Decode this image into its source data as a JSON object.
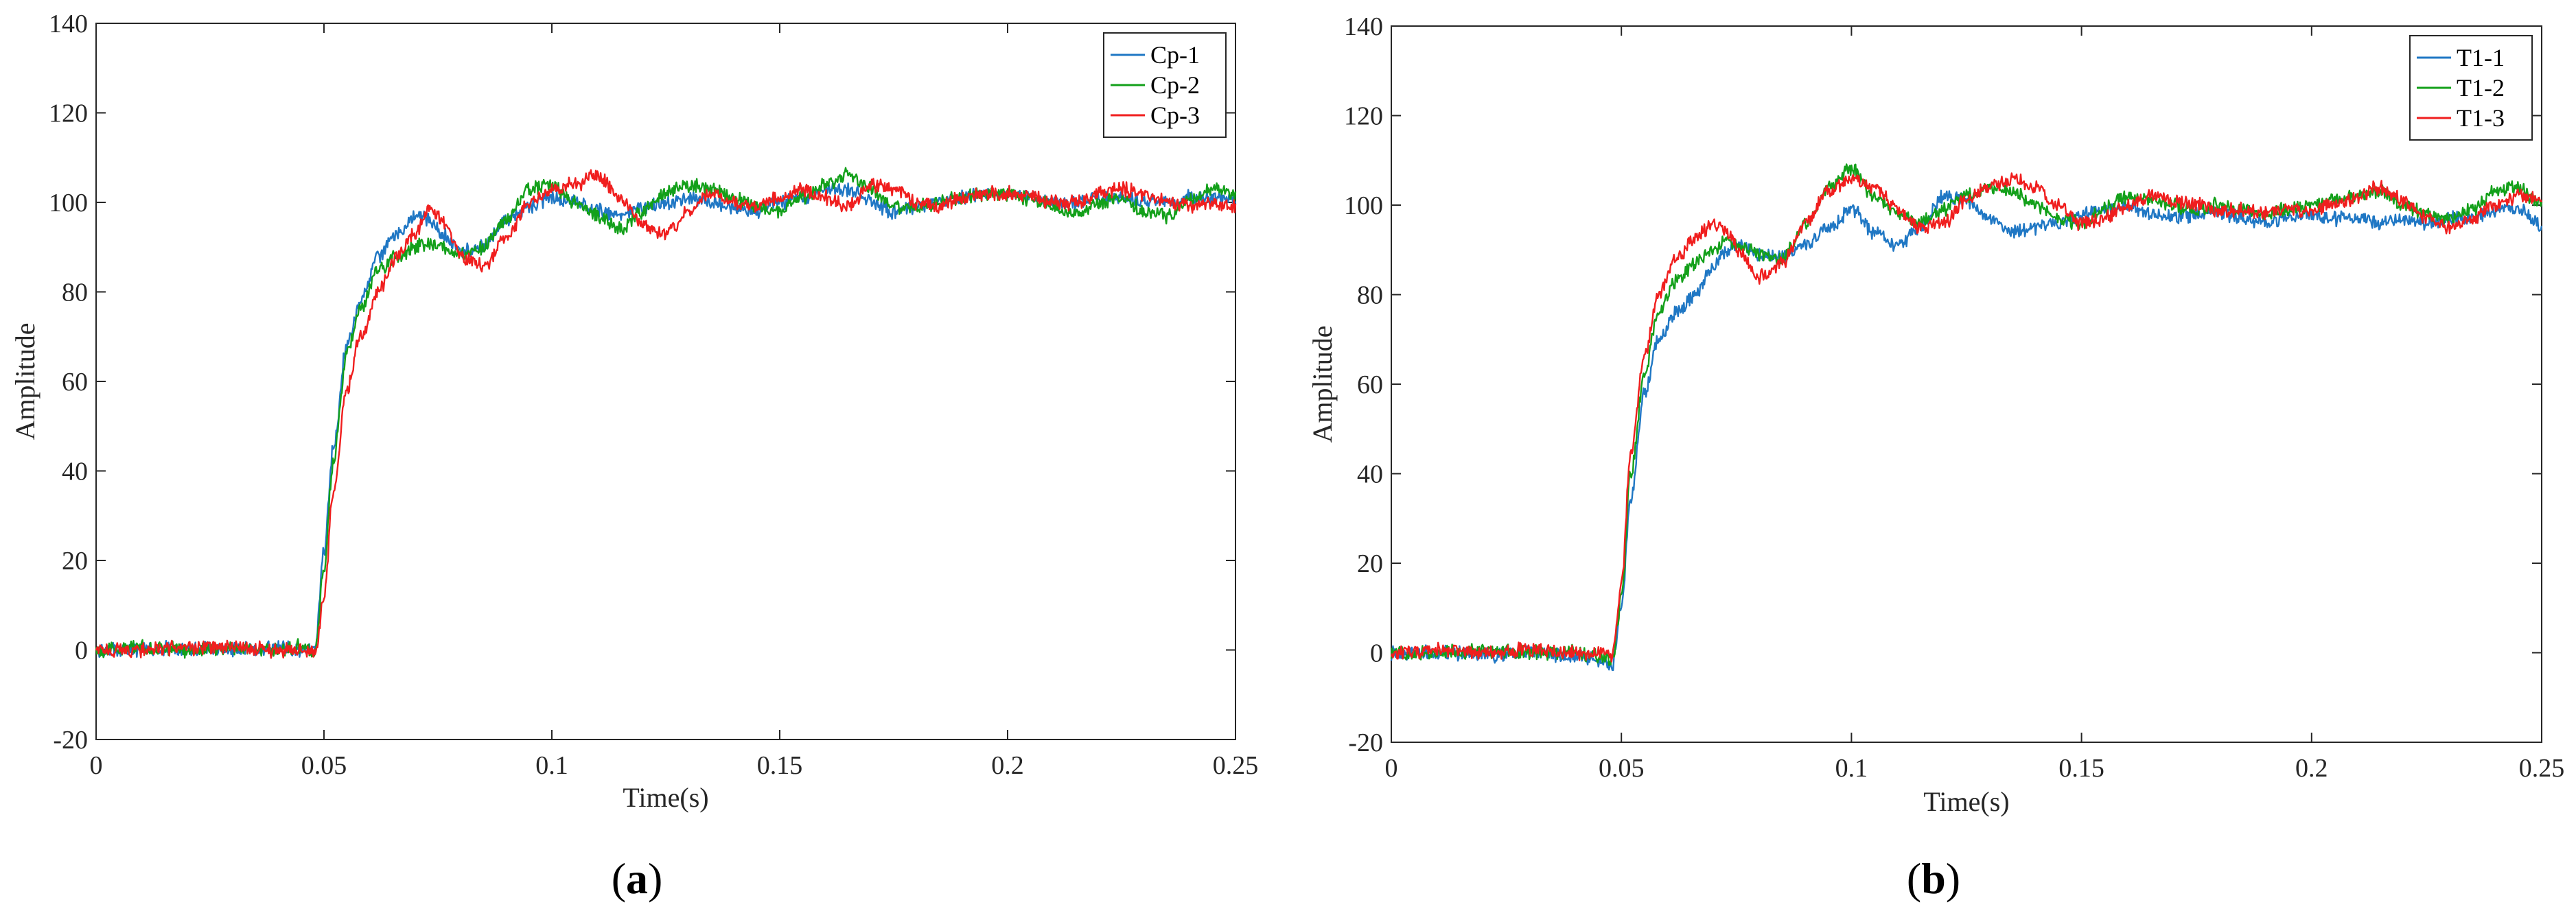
{
  "chart_data": [
    {
      "type": "line",
      "panel_label": "(a)",
      "panel_letter": "a",
      "xlabel": "Time(s)",
      "ylabel": "Amplitude",
      "xlim": [
        0,
        0.25
      ],
      "ylim": [
        -20,
        140
      ],
      "xticks": [
        0,
        0.05,
        0.1,
        0.15,
        0.2,
        0.25
      ],
      "xtick_labels": [
        "0",
        "0.05",
        "0.1",
        "0.15",
        "0.2",
        "0.25"
      ],
      "yticks": [
        -20,
        0,
        20,
        40,
        60,
        80,
        100,
        120,
        140
      ],
      "ytick_labels": [
        "-20",
        "0",
        "20",
        "40",
        "60",
        "80",
        "100",
        "120",
        "140"
      ],
      "legend_position": "top-right",
      "series": [
        {
          "name": "Cp-1",
          "color": "#1f77c4",
          "x": [
            0,
            0.01,
            0.02,
            0.03,
            0.04,
            0.046,
            0.048,
            0.05,
            0.052,
            0.055,
            0.058,
            0.062,
            0.066,
            0.07,
            0.073,
            0.076,
            0.08,
            0.085,
            0.09,
            0.095,
            0.1,
            0.105,
            0.11,
            0.115,
            0.12,
            0.125,
            0.13,
            0.135,
            0.14,
            0.145,
            0.15,
            0.155,
            0.16,
            0.165,
            0.17,
            0.175,
            0.18,
            0.185,
            0.19,
            0.195,
            0.2,
            0.205,
            0.21,
            0.215,
            0.22,
            0.225,
            0.23,
            0.235,
            0.24,
            0.245,
            0.25
          ],
          "y": [
            0,
            0,
            0.5,
            0,
            0.5,
            0,
            0,
            22,
            45,
            68,
            78,
            88,
            93,
            97,
            96,
            93,
            89,
            90,
            96,
            99,
            101,
            100,
            98,
            97,
            99,
            100,
            101,
            100,
            99,
            98,
            100,
            101,
            103,
            103,
            100,
            98,
            99,
            100,
            101,
            102,
            102,
            101,
            100,
            100,
            101,
            101,
            100,
            100,
            101,
            101,
            101
          ]
        },
        {
          "name": "Cp-2",
          "color": "#13a01a",
          "x": [
            0,
            0.01,
            0.02,
            0.03,
            0.04,
            0.046,
            0.048,
            0.05,
            0.052,
            0.055,
            0.058,
            0.062,
            0.066,
            0.07,
            0.073,
            0.076,
            0.08,
            0.085,
            0.09,
            0.095,
            0.1,
            0.105,
            0.11,
            0.115,
            0.12,
            0.125,
            0.13,
            0.135,
            0.14,
            0.145,
            0.15,
            0.155,
            0.16,
            0.165,
            0.17,
            0.175,
            0.18,
            0.185,
            0.19,
            0.195,
            0.2,
            0.205,
            0.21,
            0.215,
            0.22,
            0.225,
            0.23,
            0.235,
            0.24,
            0.245,
            0.25
          ],
          "y": [
            0,
            0.5,
            0,
            0.5,
            0,
            1,
            -1,
            18,
            42,
            66,
            76,
            85,
            88,
            90,
            91,
            90,
            88,
            90,
            96,
            103,
            104,
            100,
            97,
            94,
            98,
            102,
            104,
            103,
            101,
            99,
            98,
            101,
            104,
            106,
            103,
            99,
            99,
            100,
            101,
            102,
            102,
            101,
            99,
            97,
            100,
            101,
            98,
            97,
            101,
            103,
            102
          ]
        },
        {
          "name": "Cp-3",
          "color": "#f01e1e",
          "x": [
            0,
            0.01,
            0.02,
            0.03,
            0.04,
            0.046,
            0.048,
            0.05,
            0.052,
            0.055,
            0.058,
            0.062,
            0.066,
            0.07,
            0.073,
            0.076,
            0.08,
            0.085,
            0.09,
            0.095,
            0.1,
            0.105,
            0.11,
            0.115,
            0.12,
            0.125,
            0.13,
            0.135,
            0.14,
            0.145,
            0.15,
            0.155,
            0.16,
            0.165,
            0.17,
            0.175,
            0.18,
            0.185,
            0.19,
            0.195,
            0.2,
            0.205,
            0.21,
            0.215,
            0.22,
            0.225,
            0.23,
            0.235,
            0.24,
            0.245,
            0.25
          ],
          "y": [
            0,
            0,
            0.5,
            0.5,
            0,
            0,
            -1,
            12,
            35,
            58,
            70,
            80,
            88,
            93,
            99,
            96,
            88,
            86,
            92,
            100,
            103,
            104,
            106,
            101,
            95,
            93,
            98,
            102,
            100,
            99,
            101,
            103,
            101,
            99,
            104,
            103,
            100,
            99,
            101,
            102,
            102,
            101,
            100,
            100,
            102,
            103,
            102,
            100,
            99,
            100,
            99
          ]
        }
      ]
    },
    {
      "type": "line",
      "panel_label": "(b)",
      "panel_letter": "b",
      "xlabel": "Time(s)",
      "ylabel": "Amplitude",
      "xlim": [
        0,
        0.25
      ],
      "ylim": [
        -20,
        140
      ],
      "xticks": [
        0,
        0.05,
        0.1,
        0.15,
        0.2,
        0.25
      ],
      "xtick_labels": [
        "0",
        "0.05",
        "0.1",
        "0.15",
        "0.2",
        "0.25"
      ],
      "yticks": [
        -20,
        0,
        20,
        40,
        60,
        80,
        100,
        120,
        140
      ],
      "ytick_labels": [
        "-20",
        "0",
        "20",
        "40",
        "60",
        "80",
        "100",
        "120",
        "140"
      ],
      "legend_position": "top-right",
      "series": [
        {
          "name": "T1-1",
          "color": "#1f77c4",
          "x": [
            0,
            0.01,
            0.02,
            0.03,
            0.04,
            0.046,
            0.048,
            0.05,
            0.052,
            0.055,
            0.058,
            0.062,
            0.066,
            0.07,
            0.073,
            0.076,
            0.08,
            0.085,
            0.09,
            0.095,
            0.1,
            0.105,
            0.11,
            0.115,
            0.12,
            0.125,
            0.13,
            0.135,
            0.14,
            0.145,
            0.15,
            0.155,
            0.16,
            0.165,
            0.17,
            0.175,
            0.18,
            0.185,
            0.19,
            0.195,
            0.2,
            0.205,
            0.21,
            0.215,
            0.22,
            0.225,
            0.23,
            0.235,
            0.24,
            0.245,
            0.25
          ],
          "y": [
            0,
            0,
            -0.5,
            0,
            -1,
            -2,
            -3,
            10,
            34,
            58,
            70,
            76,
            80,
            86,
            90,
            91,
            89,
            88,
            91,
            95,
            99,
            94,
            91,
            95,
            102,
            101,
            97,
            94,
            95,
            96,
            98,
            99,
            100,
            98,
            97,
            98,
            98,
            97,
            96,
            97,
            98,
            97,
            97,
            96,
            97,
            96,
            97,
            97,
            99,
            99,
            95
          ]
        },
        {
          "name": "T1-2",
          "color": "#13a01a",
          "x": [
            0,
            0.01,
            0.02,
            0.03,
            0.04,
            0.046,
            0.048,
            0.05,
            0.052,
            0.055,
            0.058,
            0.062,
            0.066,
            0.07,
            0.073,
            0.076,
            0.08,
            0.085,
            0.09,
            0.095,
            0.1,
            0.105,
            0.11,
            0.115,
            0.12,
            0.125,
            0.13,
            0.135,
            0.14,
            0.145,
            0.15,
            0.155,
            0.16,
            0.165,
            0.17,
            0.175,
            0.18,
            0.185,
            0.19,
            0.195,
            0.2,
            0.205,
            0.21,
            0.215,
            0.22,
            0.225,
            0.23,
            0.235,
            0.24,
            0.245,
            0.25
          ],
          "y": [
            0,
            0,
            0.5,
            0,
            0,
            -1,
            -2,
            12,
            40,
            62,
            76,
            83,
            87,
            90,
            92,
            91,
            89,
            88,
            96,
            104,
            108,
            102,
            98,
            96,
            99,
            102,
            104,
            103,
            100,
            97,
            96,
            99,
            102,
            101,
            100,
            99,
            100,
            99,
            98,
            99,
            100,
            101,
            102,
            103,
            100,
            98,
            97,
            99,
            103,
            104,
            100
          ]
        },
        {
          "name": "T1-3",
          "color": "#f01e1e",
          "x": [
            0,
            0.01,
            0.02,
            0.03,
            0.04,
            0.046,
            0.048,
            0.05,
            0.052,
            0.055,
            0.058,
            0.062,
            0.066,
            0.07,
            0.073,
            0.076,
            0.08,
            0.085,
            0.09,
            0.095,
            0.1,
            0.105,
            0.11,
            0.115,
            0.12,
            0.125,
            0.13,
            0.135,
            0.14,
            0.145,
            0.15,
            0.155,
            0.16,
            0.165,
            0.17,
            0.175,
            0.18,
            0.185,
            0.19,
            0.195,
            0.2,
            0.205,
            0.21,
            0.215,
            0.22,
            0.225,
            0.23,
            0.235,
            0.24,
            0.245,
            0.25
          ],
          "y": [
            0,
            0.5,
            0,
            0.5,
            0,
            0,
            -1,
            15,
            44,
            66,
            80,
            88,
            93,
            96,
            94,
            89,
            84,
            87,
            96,
            103,
            106,
            104,
            99,
            95,
            96,
            101,
            104,
            106,
            104,
            100,
            96,
            97,
            100,
            102,
            101,
            100,
            99,
            99,
            98,
            99,
            99,
            100,
            102,
            104,
            101,
            97,
            95,
            97,
            100,
            102,
            101
          ]
        }
      ]
    }
  ]
}
